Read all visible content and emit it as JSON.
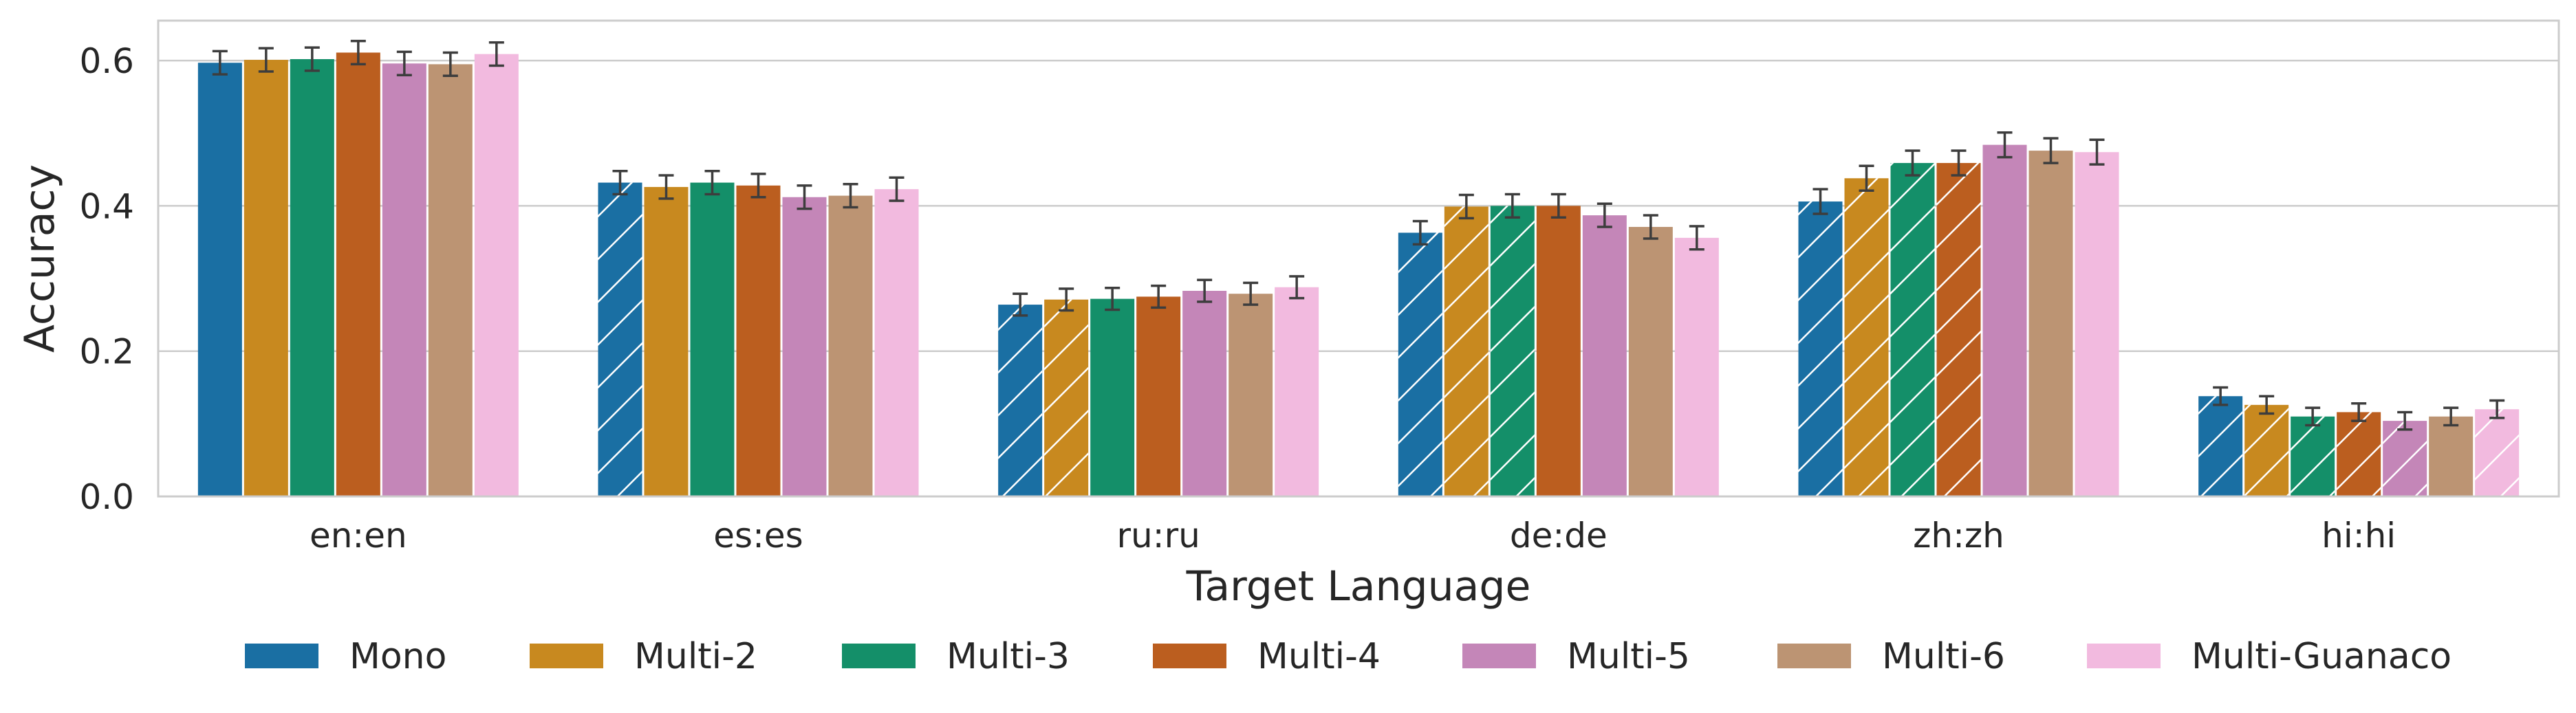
{
  "chart_data": {
    "type": "bar",
    "title": "",
    "xlabel": "Target Language",
    "ylabel": "Accuracy",
    "ylim": [
      0,
      0.655
    ],
    "yticks": [
      "0.0",
      "0.2",
      "0.4",
      "0.6"
    ],
    "grid": "horizontal",
    "legend_position": "bottom",
    "categories": [
      "en:en",
      "es:es",
      "ru:ru",
      "de:de",
      "zh:zh",
      "hi:hi"
    ],
    "hatch_note": "hatched bars",
    "series": [
      {
        "name": "Mono",
        "color": "#1a6fa3",
        "values": [
          0.597,
          0.432,
          0.264,
          0.363,
          0.406,
          0.138
        ],
        "errors": [
          0.016,
          0.016,
          0.015,
          0.016,
          0.017,
          0.012
        ],
        "hatched": [
          false,
          true,
          true,
          true,
          true,
          true
        ]
      },
      {
        "name": "Multi-2",
        "color": "#c8891f",
        "values": [
          0.601,
          0.426,
          0.271,
          0.399,
          0.438,
          0.126
        ],
        "errors": [
          0.016,
          0.016,
          0.015,
          0.016,
          0.017,
          0.012
        ],
        "hatched": [
          false,
          false,
          true,
          true,
          true,
          true
        ]
      },
      {
        "name": "Multi-3",
        "color": "#148f69",
        "values": [
          0.602,
          0.432,
          0.272,
          0.4,
          0.459,
          0.11
        ],
        "errors": [
          0.016,
          0.016,
          0.015,
          0.016,
          0.017,
          0.012
        ],
        "hatched": [
          false,
          false,
          false,
          true,
          true,
          true
        ]
      },
      {
        "name": "Multi-4",
        "color": "#bb5e1f",
        "values": [
          0.611,
          0.428,
          0.275,
          0.4,
          0.459,
          0.116
        ],
        "errors": [
          0.016,
          0.016,
          0.015,
          0.016,
          0.017,
          0.012
        ],
        "hatched": [
          false,
          false,
          false,
          false,
          true,
          true
        ]
      },
      {
        "name": "Multi-5",
        "color": "#c486b8",
        "values": [
          0.596,
          0.412,
          0.283,
          0.387,
          0.484,
          0.104
        ],
        "errors": [
          0.016,
          0.016,
          0.015,
          0.016,
          0.017,
          0.012
        ],
        "hatched": [
          false,
          false,
          false,
          false,
          false,
          true
        ]
      },
      {
        "name": "Multi-6",
        "color": "#bc9473",
        "values": [
          0.595,
          0.414,
          0.279,
          0.371,
          0.476,
          0.11
        ],
        "errors": [
          0.016,
          0.016,
          0.015,
          0.016,
          0.017,
          0.012
        ],
        "hatched": [
          false,
          false,
          false,
          false,
          false,
          false
        ]
      },
      {
        "name": "Multi-Guanaco",
        "color": "#f2badf",
        "values": [
          0.609,
          0.423,
          0.288,
          0.356,
          0.474,
          0.12
        ],
        "errors": [
          0.016,
          0.016,
          0.015,
          0.016,
          0.017,
          0.012
        ],
        "hatched": [
          false,
          false,
          false,
          false,
          false,
          true
        ]
      }
    ]
  }
}
